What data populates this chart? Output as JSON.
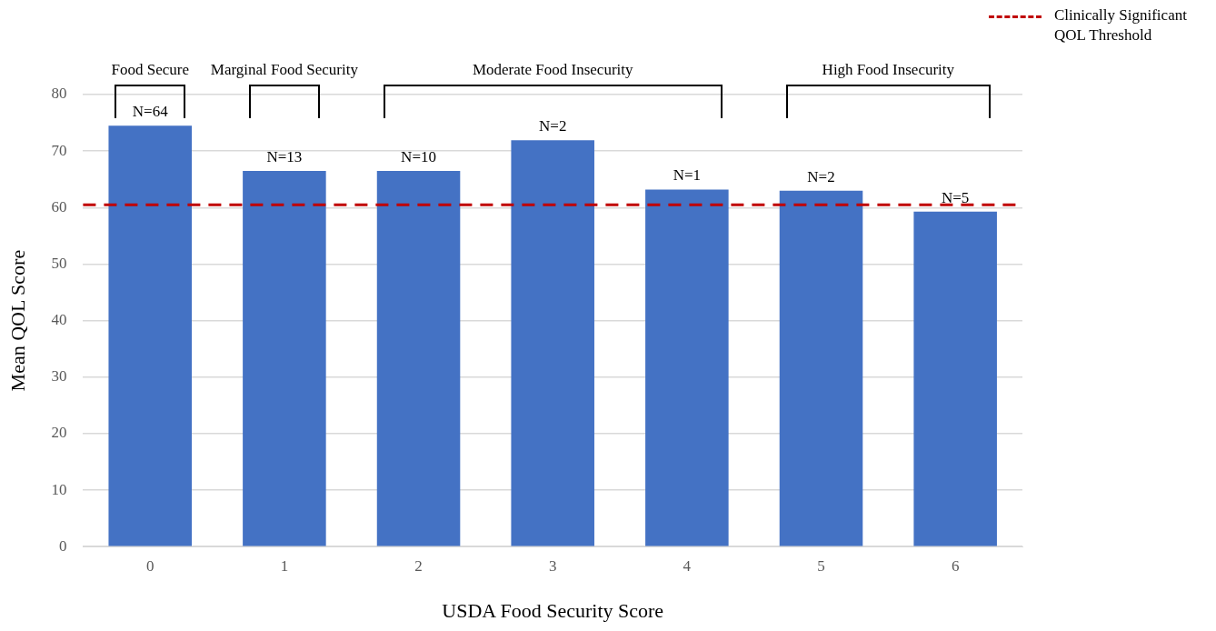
{
  "chart_data": {
    "type": "bar",
    "xlabel": "USDA Food Security Score",
    "ylabel": "Mean QOL Score",
    "categories": [
      "0",
      "1",
      "2",
      "3",
      "4",
      "5",
      "6"
    ],
    "values": [
      74.5,
      66.5,
      66.5,
      71.9,
      63.2,
      63.0,
      59.3
    ],
    "color": "#4472c4",
    "ylim": [
      0,
      80
    ],
    "yticks": [
      0,
      10,
      20,
      30,
      40,
      50,
      60,
      70,
      80
    ],
    "grid": "y",
    "legend": "top right",
    "ref_lines": [
      {
        "axis": "y",
        "value": 60.5,
        "label": "Clinically Significant QOL Threshold",
        "color": "#c00000",
        "line_style": "dashed"
      }
    ],
    "annotations": [
      {
        "text": "N=64",
        "x": "0",
        "y": 74.5
      },
      {
        "text": "N=13",
        "x": "1",
        "y": 66.5
      },
      {
        "text": "N=10",
        "x": "2",
        "y": 66.5
      },
      {
        "text": "N=2",
        "x": "3",
        "y": 71.9
      },
      {
        "text": "N=1",
        "x": "4",
        "y": 63.2
      },
      {
        "text": "N=2",
        "x": "5",
        "y": 63.0
      },
      {
        "text": "N=5",
        "x": "6",
        "y": 59.3
      },
      "Food Secure",
      "Marginal Food Security",
      "Moderate Food Insecurity",
      "High Food Insecurity"
    ]
  }
}
